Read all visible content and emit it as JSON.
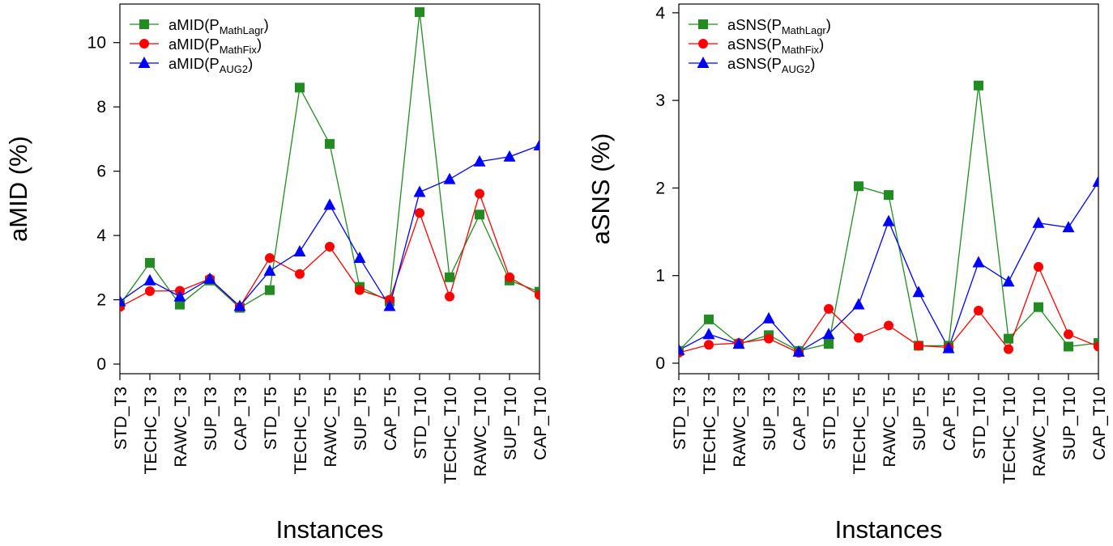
{
  "series_styles": [
    {
      "color": "#228b22",
      "marker": "square"
    },
    {
      "color": "#ff0000",
      "marker": "circle"
    },
    {
      "color": "#0000ff",
      "marker": "triangle"
    }
  ],
  "chart_data": [
    {
      "type": "line",
      "xlabel": "Instances",
      "ylabel": "aMID (%)",
      "ylim": [
        -0.3,
        11.2
      ],
      "yticks": [
        0,
        2,
        4,
        6,
        8,
        10
      ],
      "legend_position": "top-left",
      "categories": [
        "STD_T3",
        "TECHC_T3",
        "RAWC_T3",
        "SUP_T3",
        "CAP_T3",
        "STD_T5",
        "TECHC_T5",
        "RAWC_T5",
        "SUP_T5",
        "CAP_T5",
        "STD_T10",
        "TECHC_T10",
        "RAWC_T10",
        "SUP_T10",
        "CAP_T10"
      ],
      "series": [
        {
          "name": "aMID(P",
          "name_sub": "MathLagr",
          "name_end": ")",
          "values": [
            1.85,
            3.15,
            1.85,
            2.6,
            1.75,
            2.3,
            8.6,
            6.85,
            2.4,
            1.95,
            10.95,
            2.7,
            4.65,
            2.6,
            2.25
          ]
        },
        {
          "name": "aMID(P",
          "name_sub": "MathFix",
          "name_end": ")",
          "values": [
            1.78,
            2.27,
            2.28,
            2.65,
            1.78,
            3.3,
            2.8,
            3.65,
            2.3,
            2.0,
            4.7,
            2.1,
            5.3,
            2.7,
            2.15
          ]
        },
        {
          "name": "aMID(P",
          "name_sub": "AUG2",
          "name_end": ")",
          "values": [
            1.95,
            2.6,
            2.1,
            2.65,
            1.8,
            2.9,
            3.5,
            4.95,
            3.3,
            1.8,
            5.35,
            5.75,
            6.3,
            6.45,
            6.8
          ]
        }
      ]
    },
    {
      "type": "line",
      "xlabel": "Instances",
      "ylabel": "aSNS (%)",
      "ylim": [
        -0.12,
        4.1
      ],
      "yticks": [
        0,
        1,
        2,
        3,
        4
      ],
      "legend_position": "top-left",
      "categories": [
        "STD_T3",
        "TECHC_T3",
        "RAWC_T3",
        "SUP_T3",
        "CAP_T3",
        "STD_T5",
        "TECHC_T5",
        "RAWC_T5",
        "SUP_T5",
        "CAP_T5",
        "STD_T10",
        "TECHC_T10",
        "RAWC_T10",
        "SUP_T10",
        "CAP_T10"
      ],
      "series": [
        {
          "name": "aSNS(P",
          "name_sub": "MathLagr",
          "name_end": ")",
          "values": [
            0.14,
            0.5,
            0.22,
            0.32,
            0.14,
            0.22,
            2.02,
            1.92,
            0.2,
            0.2,
            3.17,
            0.28,
            0.64,
            0.19,
            0.23
          ]
        },
        {
          "name": "aSNS(P",
          "name_sub": "MathFix",
          "name_end": ")",
          "values": [
            0.12,
            0.21,
            0.23,
            0.28,
            0.12,
            0.62,
            0.29,
            0.43,
            0.2,
            0.18,
            0.6,
            0.16,
            1.1,
            0.33,
            0.19
          ]
        },
        {
          "name": "aSNS(P",
          "name_sub": "AUG2",
          "name_end": ")",
          "values": [
            0.15,
            0.33,
            0.22,
            0.51,
            0.13,
            0.33,
            0.67,
            1.62,
            0.81,
            0.17,
            1.15,
            0.93,
            1.6,
            1.55,
            2.07
          ]
        }
      ]
    }
  ]
}
